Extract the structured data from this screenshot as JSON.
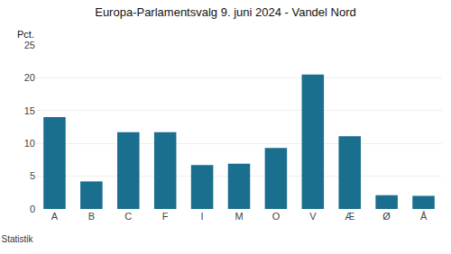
{
  "chart_data": {
    "type": "bar",
    "title": "Europa-Parlamentsvalg 9. juni 2024 - Vandel Nord",
    "ylabel": "Pct.",
    "annotations": [
      "© Danmarks Statistik"
    ],
    "categories": [
      "A",
      "B",
      "C",
      "F",
      "I",
      "M",
      "O",
      "V",
      "Æ",
      "Ø",
      "Å"
    ],
    "values": [
      14.0,
      4.2,
      11.7,
      11.7,
      6.7,
      6.9,
      9.3,
      20.5,
      11.1,
      2.1,
      2.0
    ],
    "color": "#1a6e8e",
    "ylim": [
      0,
      25
    ],
    "yticks": [
      0,
      5,
      10,
      15,
      20,
      25
    ],
    "grid": true
  }
}
